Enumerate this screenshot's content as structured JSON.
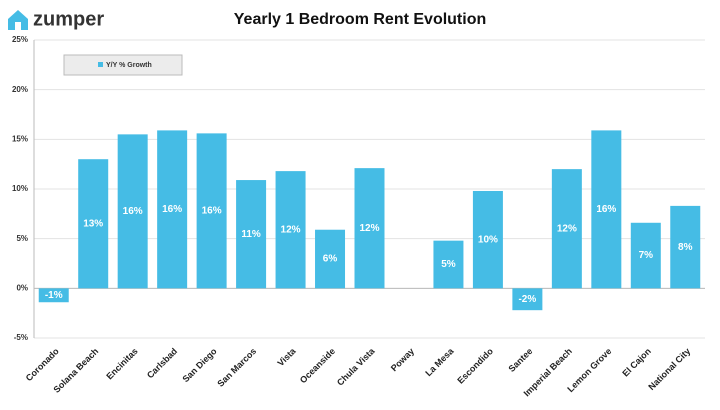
{
  "header": {
    "logo": "zumper"
  },
  "chart_data": {
    "type": "bar",
    "title": "Yearly 1 Bedroom Rent Evolution",
    "categories": [
      "Coronado",
      "Solana Beach",
      "Encinitas",
      "Carlsbad",
      "San Diego",
      "San Marcos",
      "Vista",
      "Oceanside",
      "Chula Vista",
      "Poway",
      "La Mesa",
      "Escondido",
      "Santee",
      "Imperial Beach",
      "Lemon Grove",
      "El Cajon",
      "National City"
    ],
    "series": [
      {
        "name": "Y/Y % Growth",
        "color": "#45bce5",
        "values": [
          -1.4,
          13.0,
          15.5,
          15.9,
          15.6,
          10.9,
          11.8,
          5.9,
          12.1,
          null,
          4.8,
          9.8,
          -2.2,
          12.0,
          15.9,
          6.6,
          8.3
        ],
        "value_labels": [
          "-1%",
          "13%",
          "16%",
          "16%",
          "16%",
          "11%",
          "12%",
          "6%",
          "12%",
          null,
          "5%",
          "10%",
          "-2%",
          "12%",
          "16%",
          "7%",
          "8%"
        ]
      }
    ],
    "ylim": [
      -5,
      25
    ],
    "yticks": [
      {
        "value": -5,
        "label": "-5%"
      },
      {
        "value": 0,
        "label": "0%"
      },
      {
        "value": 5,
        "label": "5%"
      },
      {
        "value": 10,
        "label": "10%"
      },
      {
        "value": 15,
        "label": "15%"
      },
      {
        "value": 20,
        "label": "20%"
      },
      {
        "value": 25,
        "label": "25%"
      }
    ],
    "grid": true,
    "legend": "top-left"
  }
}
